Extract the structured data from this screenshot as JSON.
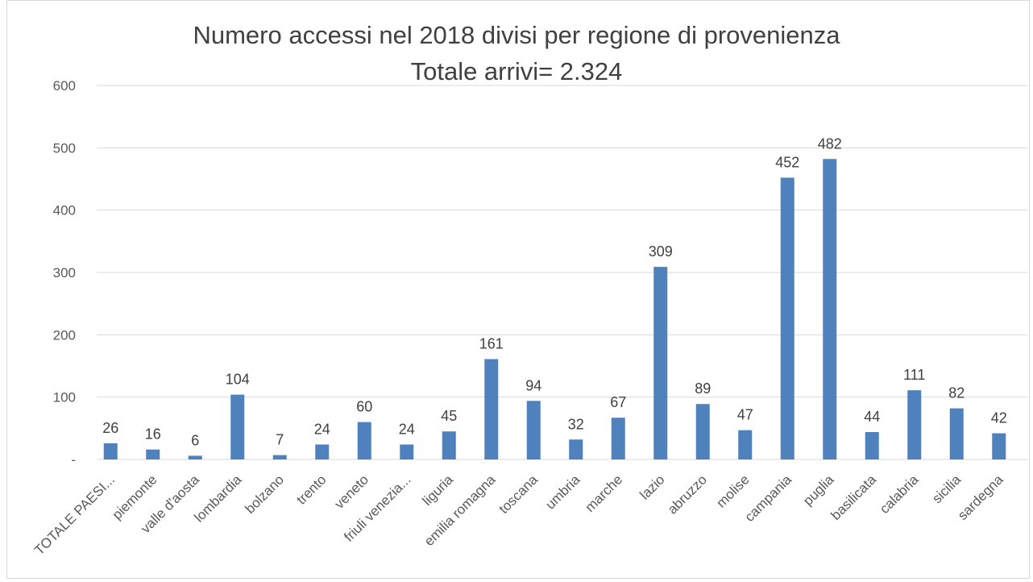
{
  "chart_data": {
    "type": "bar",
    "title": "Numero accessi nel 2018 divisi per regione di provenienza",
    "subtitle": "Totale arrivi= 2.324",
    "xlabel": "",
    "ylabel": "",
    "ylim": [
      0,
      600
    ],
    "yticks": [
      0,
      100,
      200,
      300,
      400,
      500,
      600
    ],
    "ytick_labels": [
      "-",
      "100",
      "200",
      "300",
      "400",
      "500",
      "600"
    ],
    "grid": true,
    "legend": "none",
    "bar_color": "#4f81bd",
    "categories": [
      "TOTALE PAESI...",
      "piemonte",
      "valle d'aosta",
      "lombardia",
      "bolzano",
      "trento",
      "veneto",
      "friuli venezia...",
      "liguria",
      "emilia romagna",
      "toscana",
      "umbria",
      "marche",
      "lazio",
      "abruzzo",
      "molise",
      "campania",
      "puglia",
      "basilicata",
      "calabria",
      "sicilia",
      "sardegna"
    ],
    "values": [
      26,
      16,
      6,
      104,
      7,
      24,
      60,
      24,
      45,
      161,
      94,
      32,
      67,
      309,
      89,
      47,
      452,
      482,
      44,
      111,
      82,
      42
    ]
  }
}
